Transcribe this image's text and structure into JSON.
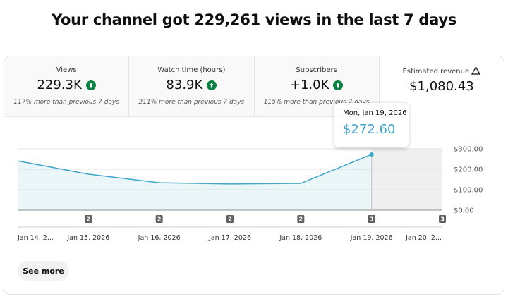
{
  "header": {
    "title": "Your channel got 229,261 views in the last 7 days"
  },
  "metrics": [
    {
      "label": "Views",
      "value": "229.3K",
      "comparison": "117% more than previous 7 days"
    },
    {
      "label": "Watch time (hours)",
      "value": "83.9K",
      "comparison": "211% more than previous 7 days"
    },
    {
      "label": "Subscribers",
      "value": "+1.0K",
      "comparison": "115% more than previous 7 days"
    },
    {
      "label": "Estimated revenue",
      "value": "$1,080.43"
    }
  ],
  "chart_data": {
    "type": "line",
    "categories": [
      "Jan 14, 2...",
      "Jan 15, 2026",
      "Jan 16, 2026",
      "Jan 17, 2026",
      "Jan 18, 2026",
      "Jan 19, 2026",
      "Jan 20, 2..."
    ],
    "values": [
      241,
      176,
      134,
      128,
      131,
      272.6,
      null
    ],
    "markers": [
      null,
      2,
      2,
      2,
      2,
      3,
      3
    ],
    "color": "#3ea6c8",
    "ylim": [
      0,
      300
    ],
    "yticks": [
      {
        "value": 0,
        "label": "$0.00"
      },
      {
        "value": 100,
        "label": "$100.00"
      },
      {
        "value": 200,
        "label": "$200.00"
      },
      {
        "value": 300,
        "label": "$300.00"
      }
    ],
    "grid": true,
    "tooltip": {
      "date": "Mon, Jan 19, 2026",
      "value": "$272.60"
    }
  },
  "button": "See more"
}
